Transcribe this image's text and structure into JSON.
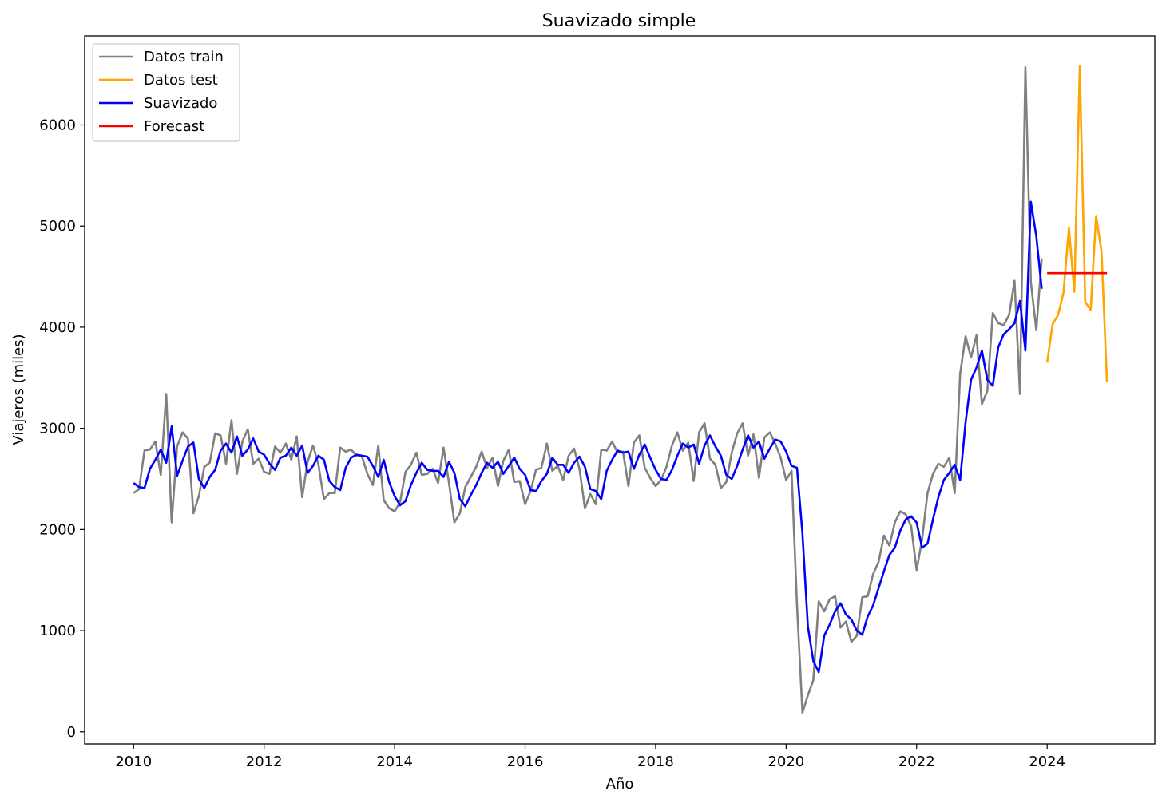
{
  "chart_data": {
    "type": "line",
    "title": "Suavizado simple",
    "xlabel": "Año",
    "ylabel": "Viajeros (miles)",
    "xlim": [
      2009.25,
      2025.65
    ],
    "ylim": [
      -120,
      6880
    ],
    "xticks": [
      2010,
      2012,
      2014,
      2016,
      2018,
      2020,
      2022,
      2024
    ],
    "yticks": [
      0,
      1000,
      2000,
      3000,
      4000,
      5000,
      6000
    ],
    "grid": false,
    "legend": "top-left",
    "start": [
      2010,
      1
    ],
    "series": [
      {
        "name": "Datos train",
        "color": "#808080",
        "start": [
          2010,
          1
        ],
        "values": [
          2360,
          2400,
          2780,
          2790,
          2870,
          2540,
          3340,
          2070,
          2820,
          2960,
          2900,
          2160,
          2330,
          2620,
          2660,
          2950,
          2930,
          2650,
          3080,
          2550,
          2870,
          2990,
          2650,
          2700,
          2570,
          2550,
          2820,
          2760,
          2850,
          2690,
          2920,
          2320,
          2670,
          2830,
          2640,
          2300,
          2360,
          2360,
          2810,
          2770,
          2790,
          2730,
          2720,
          2550,
          2440,
          2830,
          2290,
          2210,
          2180,
          2270,
          2570,
          2640,
          2760,
          2540,
          2550,
          2600,
          2460,
          2810,
          2460,
          2070,
          2160,
          2420,
          2520,
          2620,
          2770,
          2610,
          2710,
          2430,
          2680,
          2790,
          2470,
          2480,
          2250,
          2380,
          2590,
          2610,
          2850,
          2580,
          2630,
          2490,
          2730,
          2800,
          2600,
          2210,
          2350,
          2250,
          2790,
          2780,
          2870,
          2760,
          2770,
          2430,
          2860,
          2930,
          2610,
          2510,
          2430,
          2490,
          2620,
          2830,
          2960,
          2780,
          2860,
          2480,
          2960,
          3050,
          2700,
          2640,
          2410,
          2470,
          2760,
          2950,
          3050,
          2730,
          2940,
          2510,
          2910,
          2960,
          2850,
          2710,
          2490,
          2580,
          1250,
          190,
          360,
          510,
          1290,
          1190,
          1310,
          1340,
          1030,
          1090,
          890,
          950,
          1330,
          1340,
          1560,
          1680,
          1940,
          1840,
          2070,
          2180,
          2150,
          2030,
          1600,
          1900,
          2360,
          2550,
          2650,
          2620,
          2710,
          2360,
          3540,
          3910,
          3700,
          3920,
          3240,
          3370,
          4140,
          4040,
          4020,
          4120,
          4460,
          3340,
          6570,
          4450,
          3970,
          4680
        ]
      },
      {
        "name": "Datos test",
        "color": "#FFA500",
        "start": [
          2024,
          1
        ],
        "values": [
          3650,
          4030,
          4120,
          4340,
          4980,
          4350,
          6580,
          4250,
          4170,
          5100,
          4750,
          3460
        ]
      },
      {
        "name": "Suavizado",
        "color": "#0000FF",
        "start": [
          2010,
          1
        ],
        "values": [
          2460,
          2420,
          2410,
          2600,
          2690,
          2790,
          2660,
          3020,
          2530,
          2680,
          2820,
          2860,
          2500,
          2410,
          2520,
          2590,
          2780,
          2850,
          2760,
          2920,
          2730,
          2790,
          2900,
          2770,
          2740,
          2650,
          2590,
          2710,
          2730,
          2810,
          2730,
          2830,
          2560,
          2630,
          2730,
          2690,
          2480,
          2420,
          2390,
          2610,
          2710,
          2740,
          2730,
          2720,
          2630,
          2520,
          2690,
          2470,
          2330,
          2240,
          2280,
          2440,
          2560,
          2660,
          2590,
          2580,
          2580,
          2520,
          2670,
          2560,
          2300,
          2230,
          2340,
          2440,
          2560,
          2660,
          2610,
          2670,
          2550,
          2630,
          2710,
          2600,
          2540,
          2390,
          2380,
          2480,
          2550,
          2710,
          2640,
          2640,
          2560,
          2660,
          2720,
          2620,
          2400,
          2380,
          2300,
          2580,
          2690,
          2780,
          2760,
          2770,
          2600,
          2740,
          2840,
          2710,
          2590,
          2500,
          2490,
          2590,
          2730,
          2850,
          2810,
          2840,
          2650,
          2830,
          2930,
          2820,
          2730,
          2540,
          2500,
          2630,
          2790,
          2930,
          2810,
          2870,
          2700,
          2800,
          2890,
          2870,
          2770,
          2630,
          2610,
          1960,
          1040,
          700,
          590,
          950,
          1060,
          1190,
          1270,
          1160,
          1110,
          1000,
          960,
          1140,
          1250,
          1420,
          1590,
          1750,
          1820,
          1990,
          2100,
          2130,
          2070,
          1820,
          1860,
          2100,
          2320,
          2490,
          2560,
          2640,
          2490,
          3060,
          3480,
          3600,
          3770,
          3480,
          3420,
          3800,
          3930,
          3980,
          4040,
          4260,
          3770,
          5240,
          4900,
          4380
        ]
      },
      {
        "name": "Forecast",
        "color": "#FF0000",
        "start": [
          2024,
          1
        ],
        "values": [
          4535,
          4535,
          4535,
          4535,
          4535,
          4535,
          4535,
          4535,
          4535,
          4535,
          4535,
          4535
        ]
      }
    ]
  }
}
